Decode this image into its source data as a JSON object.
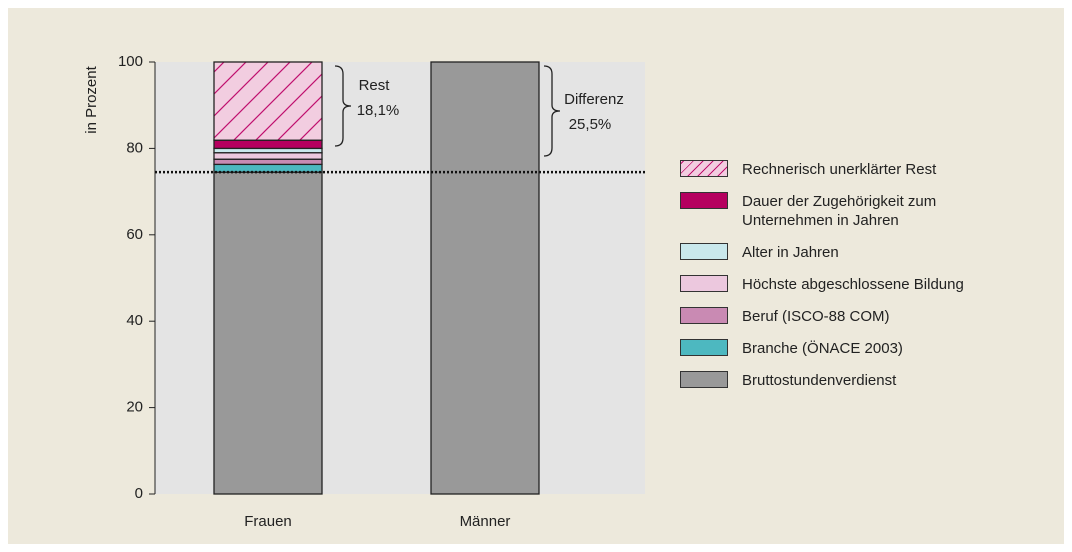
{
  "chart_data": {
    "type": "stacked-bar",
    "y_label": "in Prozent",
    "categories": [
      "Frauen",
      "Männer"
    ],
    "ylim": [
      0,
      100
    ],
    "yticks": [
      0,
      20,
      40,
      60,
      80,
      100
    ],
    "reference_line": 74.5,
    "series": [
      {
        "name": "Bruttostundenverdienst",
        "color": "#999999",
        "values": [
          74.5,
          100
        ]
      },
      {
        "name": "Branche (ÖNACE 2003)",
        "color": "#4db8c0",
        "values": [
          1.8,
          0
        ]
      },
      {
        "name": "Beruf (ISCO-88 COM)",
        "color": "#c98ab3",
        "values": [
          1.2,
          0
        ]
      },
      {
        "name": "Höchste abgeschlossene Bildung",
        "color": "#ecc8de",
        "values": [
          1.5,
          0
        ]
      },
      {
        "name": "Alter in Jahren",
        "color": "#c9e8ec",
        "values": [
          1.0,
          0
        ]
      },
      {
        "name": "Dauer der Zugehörigkeit zum Unternehmen in Jahren",
        "color": "#b5005f",
        "values": [
          1.9,
          0
        ]
      },
      {
        "name": "Rechnerisch unerklärter Rest",
        "color": "#f2cde0",
        "hatch": true,
        "values": [
          18.1,
          0
        ]
      }
    ],
    "legend_order": [
      6,
      5,
      4,
      3,
      2,
      1,
      0
    ],
    "annotations": [
      {
        "label": "Rest",
        "value": "18,1%"
      },
      {
        "label": "Differenz",
        "value": "25,5%"
      }
    ]
  }
}
